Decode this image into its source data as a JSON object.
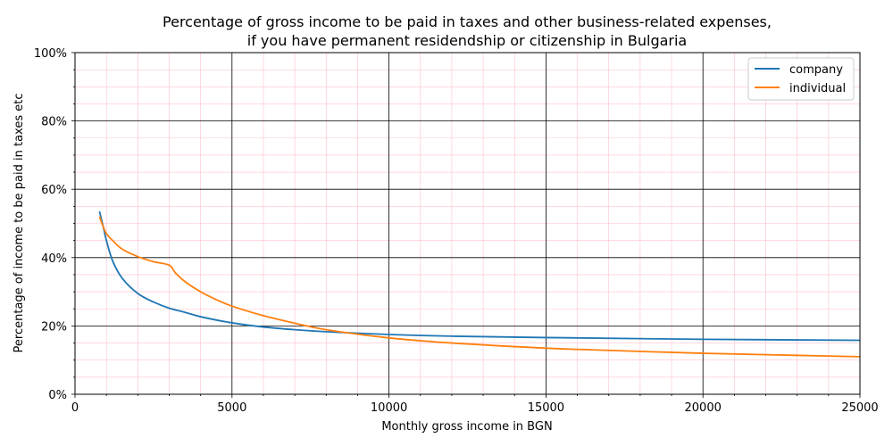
{
  "chart_data": {
    "type": "line",
    "title": [
      "Percentage of gross income to be paid in taxes and other business-related expenses,",
      "if you have permanent residendship or citizenship in Bulgaria"
    ],
    "xlabel": "Monthly gross income in BGN",
    "ylabel": "Percentage of income to be paid in taxes etc",
    "xlim": [
      0,
      25000
    ],
    "ylim": [
      0,
      100
    ],
    "x_ticks": [
      "0",
      "5000",
      "10000",
      "15000",
      "20000",
      "25000"
    ],
    "x_tick_values": [
      0,
      5000,
      10000,
      15000,
      20000,
      25000
    ],
    "y_ticks": [
      "0%",
      "20%",
      "40%",
      "60%",
      "80%",
      "100%"
    ],
    "y_tick_values": [
      0,
      20,
      40,
      60,
      80,
      100
    ],
    "grid": {
      "major": true,
      "minor": true,
      "major_color": "#000000",
      "minor_color": "#ffc0cb"
    },
    "legend_position": "top-right",
    "series": [
      {
        "name": "company",
        "color": "#1f77b4",
        "points": [
          [
            780,
            53.5
          ],
          [
            900,
            49
          ],
          [
            1000,
            45
          ],
          [
            1200,
            39
          ],
          [
            1500,
            34
          ],
          [
            2000,
            29.5
          ],
          [
            2500,
            27
          ],
          [
            3000,
            25.2
          ],
          [
            3500,
            24
          ],
          [
            4000,
            22.7
          ],
          [
            5000,
            20.9
          ],
          [
            6000,
            19.7
          ],
          [
            7000,
            18.9
          ],
          [
            8000,
            18.3
          ],
          [
            10000,
            17.5
          ],
          [
            12000,
            17.0
          ],
          [
            15000,
            16.6
          ],
          [
            20000,
            16.1
          ],
          [
            25000,
            15.8
          ]
        ]
      },
      {
        "name": "individual",
        "color": "#ff7f0e",
        "points": [
          [
            780,
            52
          ],
          [
            900,
            49
          ],
          [
            1000,
            47
          ],
          [
            1200,
            45
          ],
          [
            1500,
            42.5
          ],
          [
            2000,
            40.3
          ],
          [
            2500,
            38.8
          ],
          [
            3000,
            37.8
          ],
          [
            3200,
            35.5
          ],
          [
            3500,
            33
          ],
          [
            4000,
            30
          ],
          [
            4500,
            27.7
          ],
          [
            5000,
            25.8
          ],
          [
            6000,
            23
          ],
          [
            7000,
            20.8
          ],
          [
            8000,
            18.9
          ],
          [
            10000,
            16.5
          ],
          [
            12000,
            15
          ],
          [
            15000,
            13.5
          ],
          [
            17500,
            12.7
          ],
          [
            20000,
            12
          ],
          [
            25000,
            11
          ]
        ]
      }
    ]
  }
}
